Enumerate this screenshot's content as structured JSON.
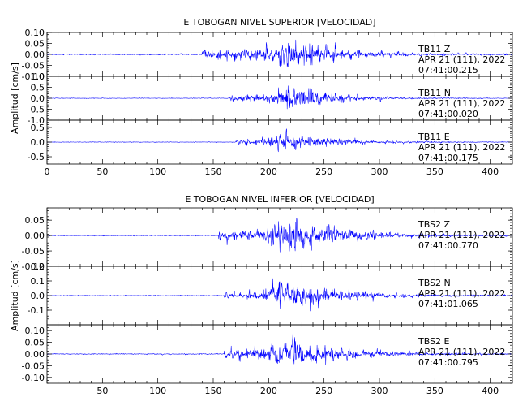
{
  "chart_data": [
    {
      "type": "line",
      "title": "E TOBOGAN NIVEL SUPERIOR [VELOCIDAD]",
      "ylabel": "Amplitud [cm/s]",
      "xlim": [
        0,
        420
      ],
      "xticks": [
        "0",
        "50",
        "100",
        "150",
        "200",
        "250",
        "300",
        "350",
        "400"
      ],
      "series_color": "#0000ff",
      "panels": [
        {
          "component": "TB11 Z",
          "date": "APR 21 (111), 2022",
          "time": "07:41:00.215",
          "ylim": [
            -0.1,
            0.1
          ],
          "yticks": [
            "0.10",
            "0.05",
            "0.00",
            "-0.05",
            "-0.10"
          ],
          "envelope": {
            "start": 140,
            "peak": 220,
            "peak_amp": 0.1,
            "pre_amp": 0.03,
            "decay": 45,
            "noise": 0.004
          }
        },
        {
          "component": "TB11 N",
          "date": "APR 21 (111), 2022",
          "time": "07:41:00.020",
          "ylim": [
            -1.0,
            1.0
          ],
          "yticks": [
            "1.0",
            "0.5",
            "0.0",
            "-0.5",
            "-1.0"
          ],
          "envelope": {
            "start": 165,
            "peak": 220,
            "peak_amp": 0.9,
            "pre_amp": 0.2,
            "decay": 35,
            "noise": 0.02
          }
        },
        {
          "component": "TB11 E",
          "date": "APR 21 (111), 2022",
          "time": "07:41:00.175",
          "ylim": [
            -0.75,
            0.75
          ],
          "yticks": [
            "0.5",
            "0.0",
            "-0.5"
          ],
          "envelope": {
            "start": 170,
            "peak": 215,
            "peak_amp": 0.45,
            "pre_amp": 0.12,
            "decay": 45,
            "noise": 0.015
          }
        }
      ]
    },
    {
      "type": "line",
      "title": "E TOBOGAN NIVEL INFERIOR [VELOCIDAD]",
      "ylabel": "Amplitud [cm/s]",
      "xlim": [
        0,
        420
      ],
      "xticks": [
        "50",
        "100",
        "150",
        "200",
        "250",
        "300",
        "350",
        "400"
      ],
      "series_color": "#0000ff",
      "panels": [
        {
          "component": "TBS2 Z",
          "date": "APR 21 (111), 2022",
          "time": "07:41:00.770",
          "ylim": [
            -0.1,
            0.09
          ],
          "yticks": [
            "0.05",
            "0.00",
            "-0.05",
            "-0.10"
          ],
          "envelope": {
            "start": 155,
            "peak": 218,
            "peak_amp": 0.085,
            "pre_amp": 0.018,
            "decay": 50,
            "noise": 0.002
          }
        },
        {
          "component": "TBS2 N",
          "date": "APR 21 (111), 2022",
          "time": "07:41:01.065",
          "ylim": [
            -0.2,
            0.2
          ],
          "yticks": [
            "0.2",
            "0.1",
            "0.0",
            "-0.1"
          ],
          "envelope": {
            "start": 160,
            "peak": 215,
            "peak_amp": 0.15,
            "pre_amp": 0.03,
            "decay": 50,
            "noise": 0.004
          }
        },
        {
          "component": "TBS2 E",
          "date": "APR 21 (111), 2022",
          "time": "07:41:00.795",
          "ylim": [
            -0.125,
            0.125
          ],
          "yticks": [
            "0.10",
            "0.05",
            "0.00",
            "-0.05",
            "-0.10"
          ],
          "envelope": {
            "start": 160,
            "peak": 215,
            "peak_amp": 0.1,
            "pre_amp": 0.025,
            "decay": 50,
            "noise": 0.003
          }
        }
      ]
    }
  ]
}
